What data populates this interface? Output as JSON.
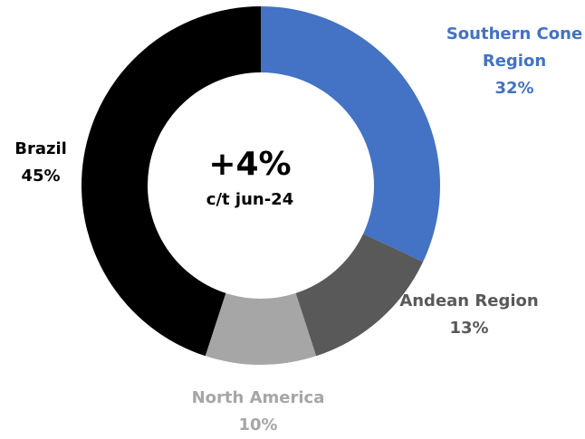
{
  "chart_data": {
    "type": "donut",
    "categories": [
      "Southern Cone Region",
      "Andean Region",
      "North America",
      "Brazil"
    ],
    "values": [
      32,
      13,
      10,
      45
    ],
    "value_labels": [
      "32%",
      "13%",
      "10%",
      "45%"
    ],
    "colors": [
      "#4472c4",
      "#595959",
      "#a6a6a6",
      "#000000"
    ],
    "annotations": [
      "+4%",
      "c/t jun-24"
    ]
  }
}
